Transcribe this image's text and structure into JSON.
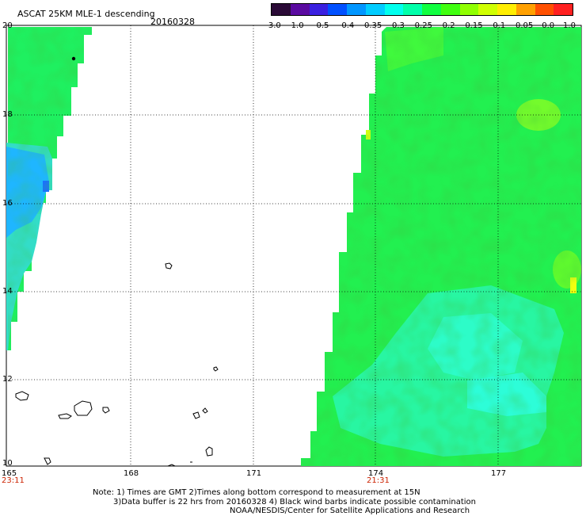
{
  "header": {
    "title": "ASCAT 25KM MLE-1 descending",
    "date": "20160328"
  },
  "colorbar": {
    "colors": [
      "#2a0a36",
      "#5a0aa0",
      "#3a20e0",
      "#0050ff",
      "#0096ff",
      "#00ccff",
      "#00ffee",
      "#00ffaa",
      "#10ff40",
      "#40ff10",
      "#90ff00",
      "#d0ff00",
      "#ffee00",
      "#ffa000",
      "#ff5000",
      "#ff2020"
    ],
    "ticks": [
      "-3.0",
      "-1.0",
      "-0.5",
      "-0.4",
      "-0.35",
      "-0.3",
      "-0.25",
      "-0.2",
      "-0.15",
      "-0.1",
      "-0.05",
      "0.0",
      "1.0"
    ]
  },
  "axes": {
    "lat_labels": [
      "20",
      "18",
      "16",
      "14",
      "12",
      "10"
    ],
    "lon_labels": [
      "165",
      "168",
      "171",
      "174",
      "177"
    ],
    "time_labels": [
      "23:11",
      "21:31"
    ]
  },
  "notes": {
    "line1": "Note: 1) Times are GMT 2)Times along bottom correspond to measurement at 15N",
    "line2": "3)Data buffer is 22 hrs from 20160328 4) Black wind barbs indicate possible contamination",
    "line3": "NOAA/NESDIS/Center for Satellite Applications and Research"
  }
}
